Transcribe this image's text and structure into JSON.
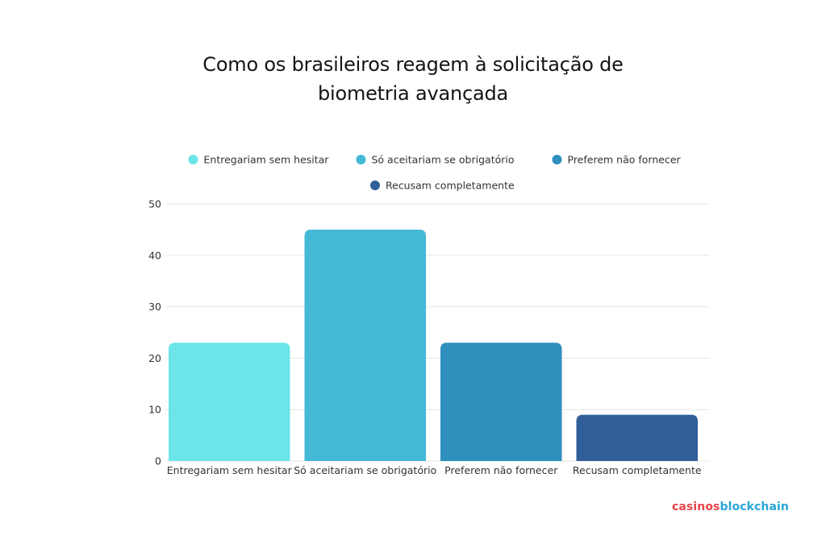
{
  "title_lines": [
    "Como os brasileiros reagem à solicitação de",
    "biometria avançada"
  ],
  "brand": {
    "part1": "casinos",
    "part2": "blockchain"
  },
  "colors": {
    "Entregariam sem hesitar": "#6be5e8",
    "Só aceitariam se obrigatório": "#43b9d6",
    "Preferem não fornecer": "#2f8fbd",
    "Recusam completamente": "#2f5e98",
    "grid": "#e6e6e6",
    "text": "#333333"
  },
  "chart_data": {
    "type": "bar",
    "title": "Como os brasileiros reagem à solicitação de biometria avançada",
    "categories": [
      "Entregariam sem hesitar",
      "Só aceitariam se obrigatório",
      "Preferem não fornecer",
      "Recusam completamente"
    ],
    "values": [
      23,
      45,
      23,
      9
    ],
    "legend": [
      "Entregariam sem hesitar",
      "Só aceitariam se obrigatório",
      "Preferem não fornecer",
      "Recusam completamente"
    ],
    "legend_position": "top",
    "ylim": [
      0,
      50
    ],
    "yticks": [
      0,
      10,
      20,
      30,
      40,
      50
    ],
    "grid": true,
    "xlabel": "",
    "ylabel": ""
  }
}
